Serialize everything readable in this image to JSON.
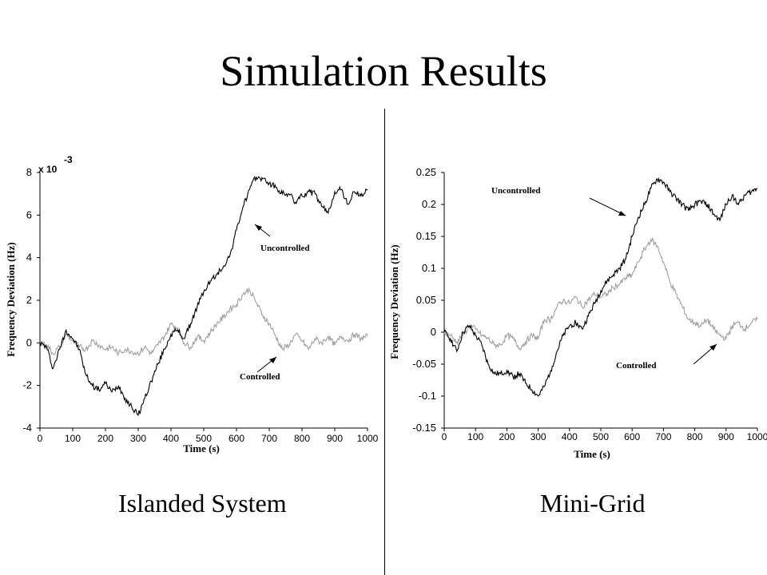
{
  "slide": {
    "title": "Simulation Results",
    "captions": [
      "Islanded System",
      "Mini-Grid"
    ]
  },
  "colors": {
    "uncontrolled": "#000000",
    "controlled": "#a0a0a0"
  },
  "chart_data": [
    {
      "type": "line",
      "xlabel": "Time (s)",
      "ylabel": "Frequency Deviation (Hz)",
      "y_multiplier": "x 10",
      "y_multiplier_exp": "-3",
      "xlim": [
        0,
        1000
      ],
      "ylim": [
        -4,
        8
      ],
      "xticks": [
        "0",
        "100",
        "200",
        "300",
        "400",
        "500",
        "600",
        "700",
        "800",
        "900",
        "1000"
      ],
      "yticks": [
        "-4",
        "-2",
        "0",
        "2",
        "4",
        "6",
        "8"
      ],
      "annotations": [
        "Uncontrolled",
        "Controlled"
      ],
      "series": [
        {
          "name": "Uncontrolled",
          "x": [
            0,
            20,
            40,
            60,
            80,
            100,
            120,
            140,
            160,
            180,
            200,
            220,
            240,
            260,
            280,
            300,
            320,
            340,
            360,
            380,
            400,
            420,
            440,
            460,
            480,
            500,
            520,
            540,
            560,
            580,
            600,
            620,
            640,
            660,
            680,
            700,
            720,
            740,
            760,
            780,
            800,
            820,
            840,
            860,
            880,
            900,
            920,
            940,
            960,
            980,
            1000
          ],
          "y": [
            0,
            -0.2,
            -1.2,
            -0.3,
            0.6,
            0.2,
            -0.3,
            -1.5,
            -2.0,
            -2.2,
            -1.9,
            -2.3,
            -2.0,
            -2.6,
            -3.0,
            -3.4,
            -2.6,
            -1.8,
            -1.0,
            -0.3,
            0.4,
            0.6,
            0.2,
            0.9,
            1.7,
            2.4,
            2.9,
            3.2,
            3.6,
            4.1,
            5.3,
            6.4,
            7.2,
            7.8,
            7.7,
            7.5,
            7.3,
            7.0,
            7.0,
            6.6,
            6.9,
            7.1,
            7.0,
            6.4,
            6.1,
            7.1,
            7.2,
            6.5,
            7.1,
            6.9,
            7.2
          ]
        },
        {
          "name": "Controlled",
          "x": [
            0,
            20,
            40,
            60,
            80,
            100,
            120,
            140,
            160,
            180,
            200,
            220,
            240,
            260,
            280,
            300,
            320,
            340,
            360,
            380,
            400,
            420,
            440,
            460,
            480,
            500,
            520,
            540,
            560,
            580,
            600,
            620,
            640,
            660,
            680,
            700,
            720,
            740,
            760,
            780,
            800,
            820,
            840,
            860,
            880,
            900,
            920,
            940,
            960,
            980,
            1000
          ],
          "y": [
            0,
            -0.1,
            -0.5,
            -0.2,
            0.4,
            0.1,
            -0.2,
            -0.3,
            0.1,
            -0.1,
            -0.3,
            -0.2,
            -0.5,
            -0.3,
            -0.4,
            -0.5,
            -0.2,
            -0.5,
            -0.1,
            0.3,
            0.9,
            0.7,
            0.0,
            -0.2,
            0.3,
            0.1,
            0.5,
            0.9,
            1.2,
            1.6,
            1.8,
            2.3,
            2.5,
            1.9,
            1.3,
            0.9,
            0.3,
            -0.3,
            -0.1,
            0.4,
            0.1,
            -0.3,
            0.2,
            0.0,
            0.3,
            -0.1,
            0.3,
            0.1,
            0.4,
            0.2,
            0.3
          ]
        }
      ]
    },
    {
      "type": "line",
      "xlabel": "Time (s)",
      "ylabel": "Frequency Deviation (Hz)",
      "xlim": [
        0,
        1000
      ],
      "ylim": [
        -0.15,
        0.25
      ],
      "xticks": [
        "0",
        "100",
        "200",
        "300",
        "400",
        "500",
        "600",
        "700",
        "800",
        "900",
        "1000"
      ],
      "yticks": [
        "-0.15",
        "-0.1",
        "-0.05",
        "0",
        "0.05",
        "0.1",
        "0.15",
        "0.2",
        "0.25"
      ],
      "annotations": [
        "Uncontrolled",
        "Controlled"
      ],
      "series": [
        {
          "name": "Uncontrolled",
          "x": [
            0,
            20,
            40,
            60,
            80,
            100,
            120,
            140,
            160,
            180,
            200,
            220,
            240,
            260,
            280,
            300,
            320,
            340,
            360,
            380,
            400,
            420,
            440,
            460,
            480,
            500,
            520,
            540,
            560,
            580,
            600,
            620,
            640,
            660,
            680,
            700,
            720,
            740,
            760,
            780,
            800,
            820,
            840,
            860,
            880,
            900,
            920,
            940,
            960,
            980,
            1000
          ],
          "y": [
            0,
            -0.01,
            -0.03,
            0.0,
            0.01,
            -0.005,
            -0.02,
            -0.05,
            -0.065,
            -0.065,
            -0.06,
            -0.07,
            -0.065,
            -0.08,
            -0.09,
            -0.1,
            -0.085,
            -0.06,
            -0.03,
            -0.005,
            0.01,
            0.015,
            0.005,
            0.025,
            0.045,
            0.065,
            0.08,
            0.09,
            0.1,
            0.115,
            0.15,
            0.18,
            0.2,
            0.225,
            0.24,
            0.235,
            0.22,
            0.21,
            0.2,
            0.19,
            0.2,
            0.205,
            0.2,
            0.185,
            0.175,
            0.2,
            0.215,
            0.2,
            0.215,
            0.22,
            0.225
          ]
        },
        {
          "name": "Controlled",
          "x": [
            0,
            20,
            40,
            60,
            80,
            100,
            120,
            140,
            160,
            180,
            200,
            220,
            240,
            260,
            280,
            300,
            320,
            340,
            360,
            380,
            400,
            420,
            440,
            460,
            480,
            500,
            520,
            540,
            560,
            580,
            600,
            620,
            640,
            660,
            680,
            700,
            720,
            740,
            760,
            780,
            800,
            820,
            840,
            860,
            880,
            900,
            920,
            940,
            960,
            980,
            1000
          ],
          "y": [
            0,
            -0.005,
            -0.015,
            -0.005,
            0.01,
            0.005,
            -0.005,
            -0.01,
            -0.02,
            -0.02,
            -0.005,
            -0.01,
            -0.025,
            -0.015,
            -0.005,
            -0.01,
            0.02,
            0.02,
            0.04,
            0.05,
            0.045,
            0.055,
            0.04,
            0.05,
            0.06,
            0.055,
            0.06,
            0.07,
            0.075,
            0.085,
            0.09,
            0.11,
            0.13,
            0.145,
            0.135,
            0.11,
            0.08,
            0.06,
            0.04,
            0.02,
            0.015,
            0.01,
            0.02,
            0.005,
            -0.005,
            -0.01,
            0.01,
            0.015,
            0.005,
            0.015,
            0.02
          ]
        }
      ]
    }
  ]
}
